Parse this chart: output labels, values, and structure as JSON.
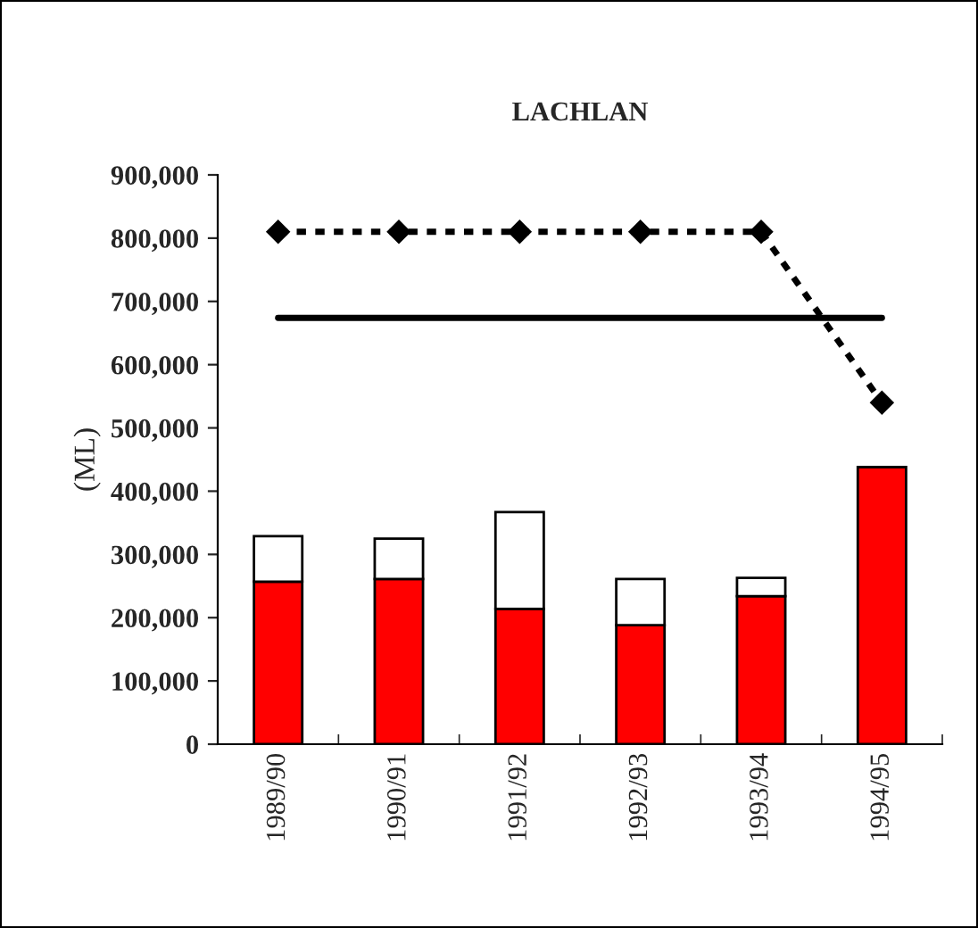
{
  "chart_data": {
    "type": "bar",
    "title": "LACHLAN",
    "ylabel": "(ML)",
    "stacked": true,
    "categories": [
      "1989/90",
      "1990/91",
      "1991/92",
      "1992/93",
      "1993/94",
      "1994/95"
    ],
    "series": [
      {
        "color": "#ff0000",
        "values": [
          257000,
          261000,
          214000,
          188000,
          234000,
          438000
        ]
      },
      {
        "color": "#ffffff",
        "values": [
          72000,
          64000,
          153000,
          73000,
          29000,
          null
        ]
      },
      {
        "type": "line",
        "color": "#000000",
        "line_style": "dotted",
        "marker": "diamond",
        "values": [
          810000,
          810000,
          810000,
          810000,
          810000,
          540000
        ]
      },
      {
        "type": "line",
        "color": "#000000",
        "line_style": "solid",
        "marker": "none",
        "values": [
          674000,
          674000,
          674000,
          674000,
          674000,
          674000
        ]
      }
    ],
    "ylim": [
      0,
      900000
    ],
    "yticks": [
      {
        "value": 0,
        "label": "0"
      },
      {
        "value": 100000,
        "label": "100,000"
      },
      {
        "value": 200000,
        "label": "200,000"
      },
      {
        "value": 300000,
        "label": "300,000"
      },
      {
        "value": 400000,
        "label": "400,000"
      },
      {
        "value": 500000,
        "label": "500,000"
      },
      {
        "value": 600000,
        "label": "600,000"
      },
      {
        "value": 700000,
        "label": "700,000"
      },
      {
        "value": 800000,
        "label": "800,000"
      },
      {
        "value": 900000,
        "label": "900,000"
      }
    ],
    "grid": false
  }
}
